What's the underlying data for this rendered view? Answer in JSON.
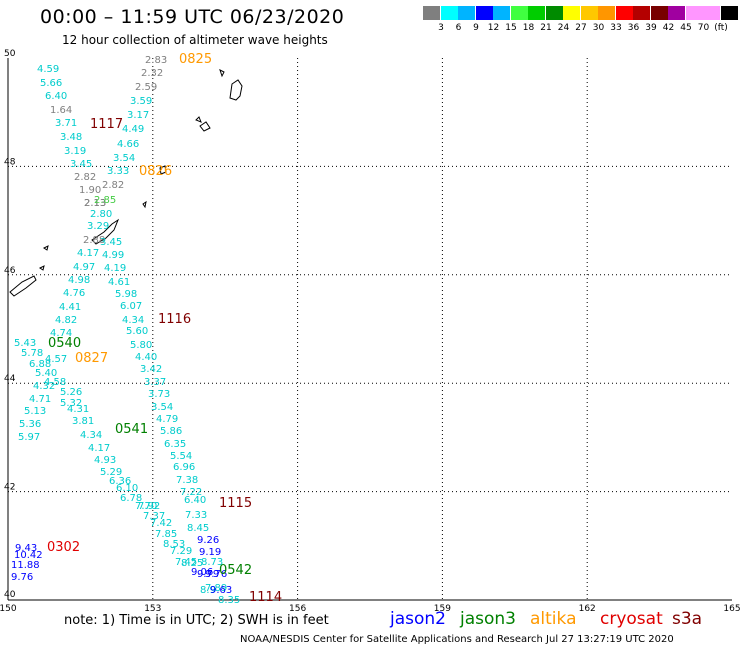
{
  "header": {
    "title": "00:00 – 11:59 UTC 06/23/2020",
    "subtitle": "12 hour collection of altimeter wave heights"
  },
  "scale": {
    "colors": [
      "#7f7f7f",
      "#00ffff",
      "#00b4ff",
      "#0000ff",
      "#00b4ff",
      "#40ff40",
      "#00cd00",
      "#008b00",
      "#ffff00",
      "#ffc800",
      "#ff9600",
      "#ff0000",
      "#b40000",
      "#780000",
      "#a000a0",
      "#ff96ff",
      "#ff96ff",
      "#000000"
    ],
    "labels": [
      "3",
      "6",
      "9",
      "12",
      "15",
      "18",
      "21",
      "24",
      "27",
      "30",
      "33",
      "36",
      "39",
      "42",
      "45",
      "70",
      "(ft)"
    ]
  },
  "map": {
    "lat_labels": [
      "50",
      "48",
      "46",
      "44",
      "42",
      "40"
    ],
    "lon_labels": [
      "150",
      "153",
      "156",
      "159",
      "162",
      "165"
    ],
    "times": [
      {
        "text": "0825",
        "color": "#ff9900"
      },
      {
        "text": "1117",
        "color": "#800000"
      },
      {
        "text": "0826",
        "color": "#ff9900"
      },
      {
        "text": "1116",
        "color": "#800000"
      },
      {
        "text": "0540",
        "color": "#008000"
      },
      {
        "text": "0827",
        "color": "#ff9900"
      },
      {
        "text": "0541",
        "color": "#008000"
      },
      {
        "text": "1115",
        "color": "#800000"
      },
      {
        "text": "0302",
        "color": "#e00000"
      },
      {
        "text": "0542",
        "color": "#008000"
      },
      {
        "text": "1114",
        "color": "#800000"
      }
    ],
    "waves": [
      {
        "v": "2.83",
        "c": "#7f7f7f"
      },
      {
        "v": "2.32",
        "c": "#7f7f7f"
      },
      {
        "v": "2.59",
        "c": "#7f7f7f"
      },
      {
        "v": "3.59",
        "c": "#00cccc"
      },
      {
        "v": "3.17",
        "c": "#00cccc"
      },
      {
        "v": "4.49",
        "c": "#00cccc"
      },
      {
        "v": "4.66",
        "c": "#00cccc"
      },
      {
        "v": "3.54",
        "c": "#00cccc"
      },
      {
        "v": "3.33",
        "c": "#00cccc"
      },
      {
        "v": "2.82",
        "c": "#7f7f7f"
      },
      {
        "v": "2.13",
        "c": "#7f7f7f"
      },
      {
        "v": "4.59",
        "c": "#00cccc"
      },
      {
        "v": "5.66",
        "c": "#00cccc"
      },
      {
        "v": "6.40",
        "c": "#00cccc"
      },
      {
        "v": "1.64",
        "c": "#7f7f7f"
      },
      {
        "v": "3.71",
        "c": "#00cccc"
      },
      {
        "v": "3.48",
        "c": "#00cccc"
      },
      {
        "v": "3.19",
        "c": "#00cccc"
      },
      {
        "v": "3.45",
        "c": "#00cccc"
      },
      {
        "v": "2.82",
        "c": "#7f7f7f"
      },
      {
        "v": "1.90",
        "c": "#7f7f7f"
      },
      {
        "v": "2.13",
        "c": "#7f7f7f"
      },
      {
        "v": "2.85",
        "c": "#44cc44"
      },
      {
        "v": "2.80",
        "c": "#00cccc"
      },
      {
        "v": "3.29",
        "c": "#00cccc"
      },
      {
        "v": "2.88",
        "c": "#7f7f7f"
      },
      {
        "v": "3.45",
        "c": "#00cccc"
      },
      {
        "v": "4.17",
        "c": "#00cccc"
      },
      {
        "v": "4.99",
        "c": "#00cccc"
      },
      {
        "v": "4.97",
        "c": "#00cccc"
      },
      {
        "v": "4.19",
        "c": "#00cccc"
      },
      {
        "v": "4.98",
        "c": "#00cccc"
      },
      {
        "v": "4.61",
        "c": "#00cccc"
      },
      {
        "v": "4.76",
        "c": "#00cccc"
      },
      {
        "v": "5.98",
        "c": "#00cccc"
      },
      {
        "v": "4.41",
        "c": "#00cccc"
      },
      {
        "v": "6.07",
        "c": "#00cccc"
      },
      {
        "v": "4.82",
        "c": "#00cccc"
      },
      {
        "v": "4.34",
        "c": "#00cccc"
      },
      {
        "v": "4.74",
        "c": "#00cccc"
      },
      {
        "v": "5.60",
        "c": "#00cccc"
      },
      {
        "v": "5.43",
        "c": "#00cccc"
      },
      {
        "v": "5.80",
        "c": "#00cccc"
      },
      {
        "v": "5.78",
        "c": "#00cccc"
      },
      {
        "v": "4.57",
        "c": "#00cccc"
      },
      {
        "v": "4.40",
        "c": "#00cccc"
      },
      {
        "v": "6.88",
        "c": "#00cccc"
      },
      {
        "v": "3.42",
        "c": "#00cccc"
      },
      {
        "v": "5.40",
        "c": "#00cccc"
      },
      {
        "v": "4.58",
        "c": "#00cccc"
      },
      {
        "v": "3.37",
        "c": "#00cccc"
      },
      {
        "v": "4.32",
        "c": "#00cccc"
      },
      {
        "v": "5.26",
        "c": "#00cccc"
      },
      {
        "v": "3.73",
        "c": "#00cccc"
      },
      {
        "v": "4.71",
        "c": "#00cccc"
      },
      {
        "v": "5.32",
        "c": "#00cccc"
      },
      {
        "v": "3.54",
        "c": "#00cccc"
      },
      {
        "v": "5.13",
        "c": "#00cccc"
      },
      {
        "v": "4.31",
        "c": "#00cccc"
      },
      {
        "v": "4.79",
        "c": "#00cccc"
      },
      {
        "v": "5.36",
        "c": "#00cccc"
      },
      {
        "v": "3.81",
        "c": "#00cccc"
      },
      {
        "v": "5.86",
        "c": "#00cccc"
      },
      {
        "v": "5.97",
        "c": "#00cccc"
      },
      {
        "v": "4.34",
        "c": "#00cccc"
      },
      {
        "v": "6.35",
        "c": "#00cccc"
      },
      {
        "v": "4.17",
        "c": "#00cccc"
      },
      {
        "v": "4.93",
        "c": "#00cccc"
      },
      {
        "v": "5.54",
        "c": "#00cccc"
      },
      {
        "v": "5.29",
        "c": "#00cccc"
      },
      {
        "v": "6.96",
        "c": "#00cccc"
      },
      {
        "v": "6.36",
        "c": "#00cccc"
      },
      {
        "v": "7.38",
        "c": "#00cccc"
      },
      {
        "v": "6.10",
        "c": "#00cccc"
      },
      {
        "v": "6.78",
        "c": "#00cccc"
      },
      {
        "v": "7.22",
        "c": "#00cccc"
      },
      {
        "v": "7.70",
        "c": "#00cccc"
      },
      {
        "v": "7.92",
        "c": "#00cccc"
      },
      {
        "v": "7.37",
        "c": "#00cccc"
      },
      {
        "v": "6.40",
        "c": "#00cccc"
      },
      {
        "v": "7.33",
        "c": "#00cccc"
      },
      {
        "v": "7.42",
        "c": "#00cccc"
      },
      {
        "v": "8.45",
        "c": "#00cccc"
      },
      {
        "v": "7.85",
        "c": "#00cccc"
      },
      {
        "v": "8.53",
        "c": "#00cccc"
      },
      {
        "v": "9.26",
        "c": "#0000ff"
      },
      {
        "v": "7.29",
        "c": "#00cccc"
      },
      {
        "v": "9.19",
        "c": "#0000ff"
      },
      {
        "v": "7.45",
        "c": "#00cccc"
      },
      {
        "v": "8.73",
        "c": "#00cccc"
      },
      {
        "v": "8.25",
        "c": "#00cccc"
      },
      {
        "v": "9.06",
        "c": "#0000ff"
      },
      {
        "v": "9.79",
        "c": "#0000ff"
      },
      {
        "v": "9.76",
        "c": "#0000ff"
      },
      {
        "v": "7.89",
        "c": "#00cccc"
      },
      {
        "v": "8.9",
        "c": "#00cccc"
      },
      {
        "v": "9.63",
        "c": "#0000ff"
      },
      {
        "v": "8.35",
        "c": "#00cccc"
      },
      {
        "v": "9.43",
        "c": "#0000ff"
      },
      {
        "v": "10.42",
        "c": "#0000ff"
      },
      {
        "v": "11.88",
        "c": "#0000ff"
      },
      {
        "v": "9.76",
        "c": "#0000ff"
      }
    ]
  },
  "footer": {
    "note": "note:  1) Time is in UTC;  2) SWH is in feet",
    "satellites": [
      {
        "name": "jason2",
        "color": "#0000ff"
      },
      {
        "name": "jason3",
        "color": "#008000"
      },
      {
        "name": "altika",
        "color": "#ff9900"
      },
      {
        "name": "cryosat",
        "color": "#e00000"
      },
      {
        "name": "s3a",
        "color": "#800000"
      }
    ],
    "credit": "NOAA/NESDIS Center for Satellite Applications and Research    Jul 27 13:27:19 UTC 2020"
  }
}
